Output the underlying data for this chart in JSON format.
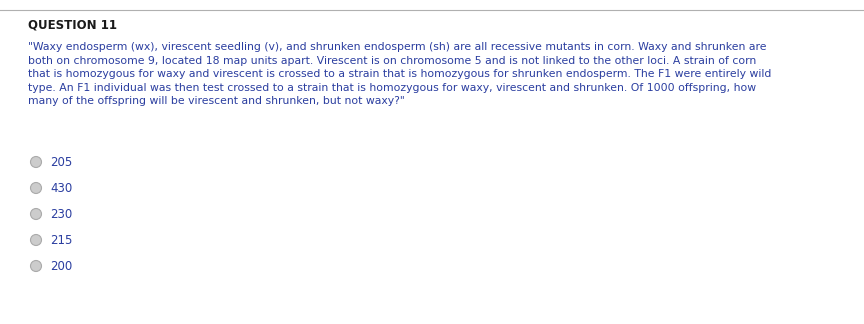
{
  "title": "QUESTION 11",
  "question_text": "\"Waxy endosperm (wx), virescent seedling (v), and shrunken endosperm (sh) are all recessive mutants in corn. Waxy and shrunken are\nboth on chromosome 9, located 18 map units apart. Virescent is on chromosome 5 and is not linked to the other loci. A strain of corn\nthat is homozygous for waxy and virescent is crossed to a strain that is homozygous for shrunken endosperm. The F1 were entirely wild\ntype. An F1 individual was then test crossed to a strain that is homozygous for waxy, virescent and shrunken. Of 1000 offspring, how\nmany of the offspring will be virescent and shrunken, but not waxy?\"",
  "options": [
    "205",
    "430",
    "230",
    "215",
    "200"
  ],
  "bg_color": "#ffffff",
  "title_color": "#1a1a1a",
  "text_color": "#2b3ea0",
  "option_color": "#2b3ea0",
  "title_fontsize": 8.5,
  "question_fontsize": 7.8,
  "option_fontsize": 8.5,
  "circle_edge_color": "#aaaaaa",
  "circle_fill_color": "#cccccc",
  "top_line_color": "#b0b0b0"
}
